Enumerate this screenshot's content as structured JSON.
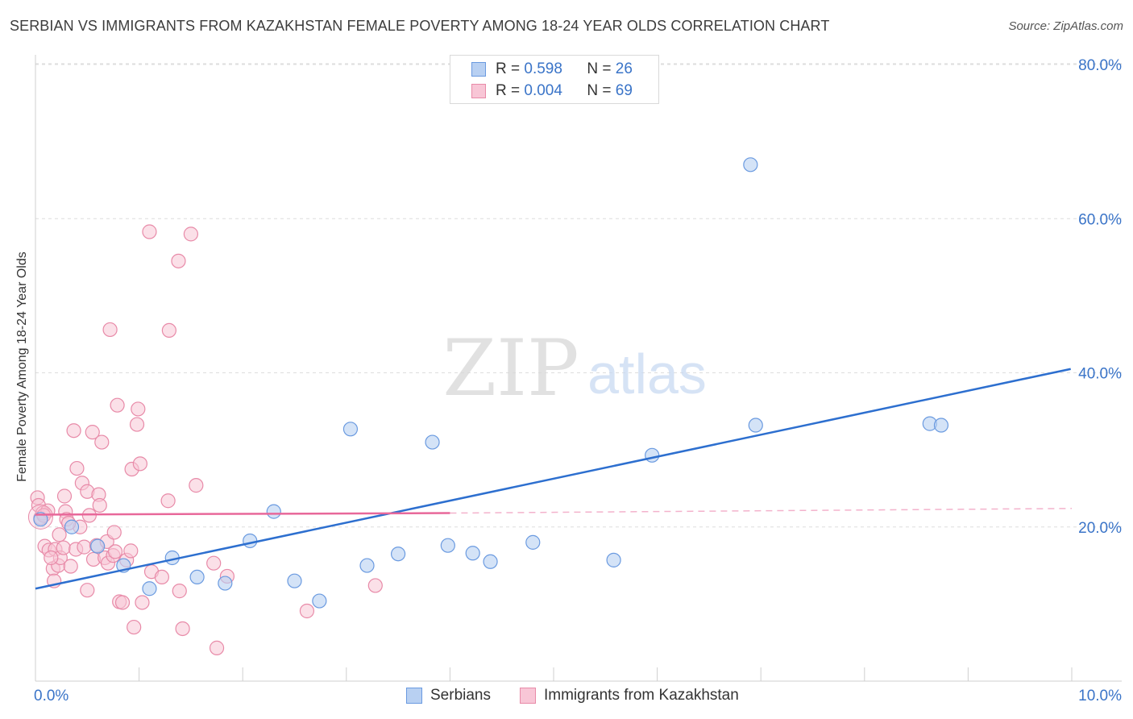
{
  "title": "SERBIAN VS IMMIGRANTS FROM KAZAKHSTAN FEMALE POVERTY AMONG 18-24 YEAR OLDS CORRELATION CHART",
  "source": "Source: ZipAtlas.com",
  "watermark": {
    "zip": "ZIP",
    "atlas": "atlas"
  },
  "legend_top": {
    "rows": [
      {
        "r_label": "R =",
        "r_value": "0.598",
        "n_label": "N =",
        "n_value": "26"
      },
      {
        "r_label": "R =",
        "r_value": "0.004",
        "n_label": "N =",
        "n_value": "69"
      }
    ]
  },
  "legend_bottom": {
    "serbians": "Serbians",
    "kazakhstan": "Immigrants from Kazakhstan"
  },
  "colors": {
    "serbian_fill": "#b8d0f2",
    "serbian_stroke": "#6a9ae0",
    "serbian_line": "#2d6fcf",
    "kaz_fill": "#f8c6d6",
    "kaz_stroke": "#e88aa8",
    "kaz_line": "#e8689a",
    "tick_text": "#3a74c8",
    "grid": "#dddddd"
  },
  "chart_data": {
    "type": "scatter",
    "title": "SERBIAN VS IMMIGRANTS FROM KAZAKHSTAN FEMALE POVERTY AMONG 18-24 YEAR OLDS CORRELATION CHART",
    "xlabel": "",
    "ylabel": "Female Poverty Among 18-24 Year Olds",
    "xlim": [
      0,
      10
    ],
    "ylim": [
      0,
      80
    ],
    "x_ticks": [
      "0.0%",
      "10.0%"
    ],
    "y_ticks": [
      "20.0%",
      "40.0%",
      "60.0%",
      "80.0%"
    ],
    "y_tick_values": [
      20,
      40,
      60,
      80
    ],
    "grid": "horizontal dashed",
    "legend_position": "top-center",
    "series": [
      {
        "name": "Serbians",
        "r": 0.598,
        "n": 26,
        "trend": {
          "x": [
            0,
            9.99
          ],
          "y": [
            12.0,
            40.5
          ],
          "dashed_from": null
        },
        "points": [
          [
            0.05,
            21.0
          ],
          [
            0.35,
            20.0
          ],
          [
            0.6,
            17.5
          ],
          [
            0.85,
            15.0
          ],
          [
            1.1,
            12.0
          ],
          [
            1.32,
            16.0
          ],
          [
            1.56,
            13.5
          ],
          [
            1.83,
            12.7
          ],
          [
            2.07,
            18.2
          ],
          [
            2.3,
            22.0
          ],
          [
            2.5,
            13.0
          ],
          [
            2.74,
            10.4
          ],
          [
            3.04,
            32.7
          ],
          [
            3.2,
            15.0
          ],
          [
            3.5,
            16.5
          ],
          [
            3.83,
            31.0
          ],
          [
            3.98,
            17.6
          ],
          [
            4.22,
            16.6
          ],
          [
            4.39,
            15.5
          ],
          [
            4.8,
            18.0
          ],
          [
            5.58,
            15.7
          ],
          [
            5.95,
            29.3
          ],
          [
            6.9,
            67.0
          ],
          [
            6.95,
            33.2
          ],
          [
            8.63,
            33.4
          ],
          [
            8.74,
            33.2
          ]
        ]
      },
      {
        "name": "Immigrants from Kazakhstan",
        "r": 0.004,
        "n": 69,
        "trend": {
          "x": [
            0,
            4.0
          ],
          "y": [
            21.6,
            21.8
          ],
          "dashed_from": 4.0,
          "dashed_to": [
            10.0,
            22.4
          ]
        },
        "points": [
          [
            0.02,
            23.8
          ],
          [
            0.03,
            22.8
          ],
          [
            0.05,
            21.2
          ],
          [
            0.07,
            21.8
          ],
          [
            0.09,
            17.5
          ],
          [
            0.12,
            22.1
          ],
          [
            0.13,
            17.0
          ],
          [
            0.17,
            14.6
          ],
          [
            0.18,
            13.0
          ],
          [
            0.19,
            17.1
          ],
          [
            0.22,
            15.0
          ],
          [
            0.23,
            19.0
          ],
          [
            0.24,
            16.0
          ],
          [
            0.27,
            17.3
          ],
          [
            0.28,
            24.0
          ],
          [
            0.29,
            22.0
          ],
          [
            0.3,
            21.0
          ],
          [
            0.34,
            14.9
          ],
          [
            0.37,
            32.5
          ],
          [
            0.39,
            17.1
          ],
          [
            0.4,
            27.6
          ],
          [
            0.43,
            20.0
          ],
          [
            0.45,
            25.7
          ],
          [
            0.47,
            17.4
          ],
          [
            0.5,
            11.8
          ],
          [
            0.5,
            24.6
          ],
          [
            0.52,
            21.5
          ],
          [
            0.55,
            32.3
          ],
          [
            0.56,
            15.8
          ],
          [
            0.59,
            17.6
          ],
          [
            0.61,
            24.2
          ],
          [
            0.62,
            22.8
          ],
          [
            0.64,
            31.0
          ],
          [
            0.67,
            16.0
          ],
          [
            0.69,
            18.1
          ],
          [
            0.7,
            15.3
          ],
          [
            0.72,
            45.6
          ],
          [
            0.75,
            16.3
          ],
          [
            0.76,
            19.3
          ],
          [
            0.77,
            16.8
          ],
          [
            0.79,
            35.8
          ],
          [
            0.81,
            10.3
          ],
          [
            0.84,
            10.2
          ],
          [
            0.88,
            15.7
          ],
          [
            0.92,
            16.9
          ],
          [
            0.93,
            27.5
          ],
          [
            0.95,
            7.0
          ],
          [
            0.98,
            33.3
          ],
          [
            0.99,
            35.3
          ],
          [
            1.01,
            28.2
          ],
          [
            1.03,
            10.2
          ],
          [
            1.1,
            58.3
          ],
          [
            1.12,
            14.2
          ],
          [
            1.22,
            13.5
          ],
          [
            1.28,
            23.4
          ],
          [
            1.29,
            45.5
          ],
          [
            1.38,
            54.5
          ],
          [
            1.39,
            11.7
          ],
          [
            1.42,
            6.8
          ],
          [
            1.5,
            58.0
          ],
          [
            1.55,
            25.4
          ],
          [
            1.72,
            15.3
          ],
          [
            1.75,
            4.3
          ],
          [
            1.85,
            13.6
          ],
          [
            2.62,
            9.1
          ],
          [
            3.28,
            12.4
          ],
          [
            0.08,
            21.5
          ],
          [
            0.15,
            16.0
          ],
          [
            0.32,
            20.5
          ]
        ]
      }
    ]
  }
}
